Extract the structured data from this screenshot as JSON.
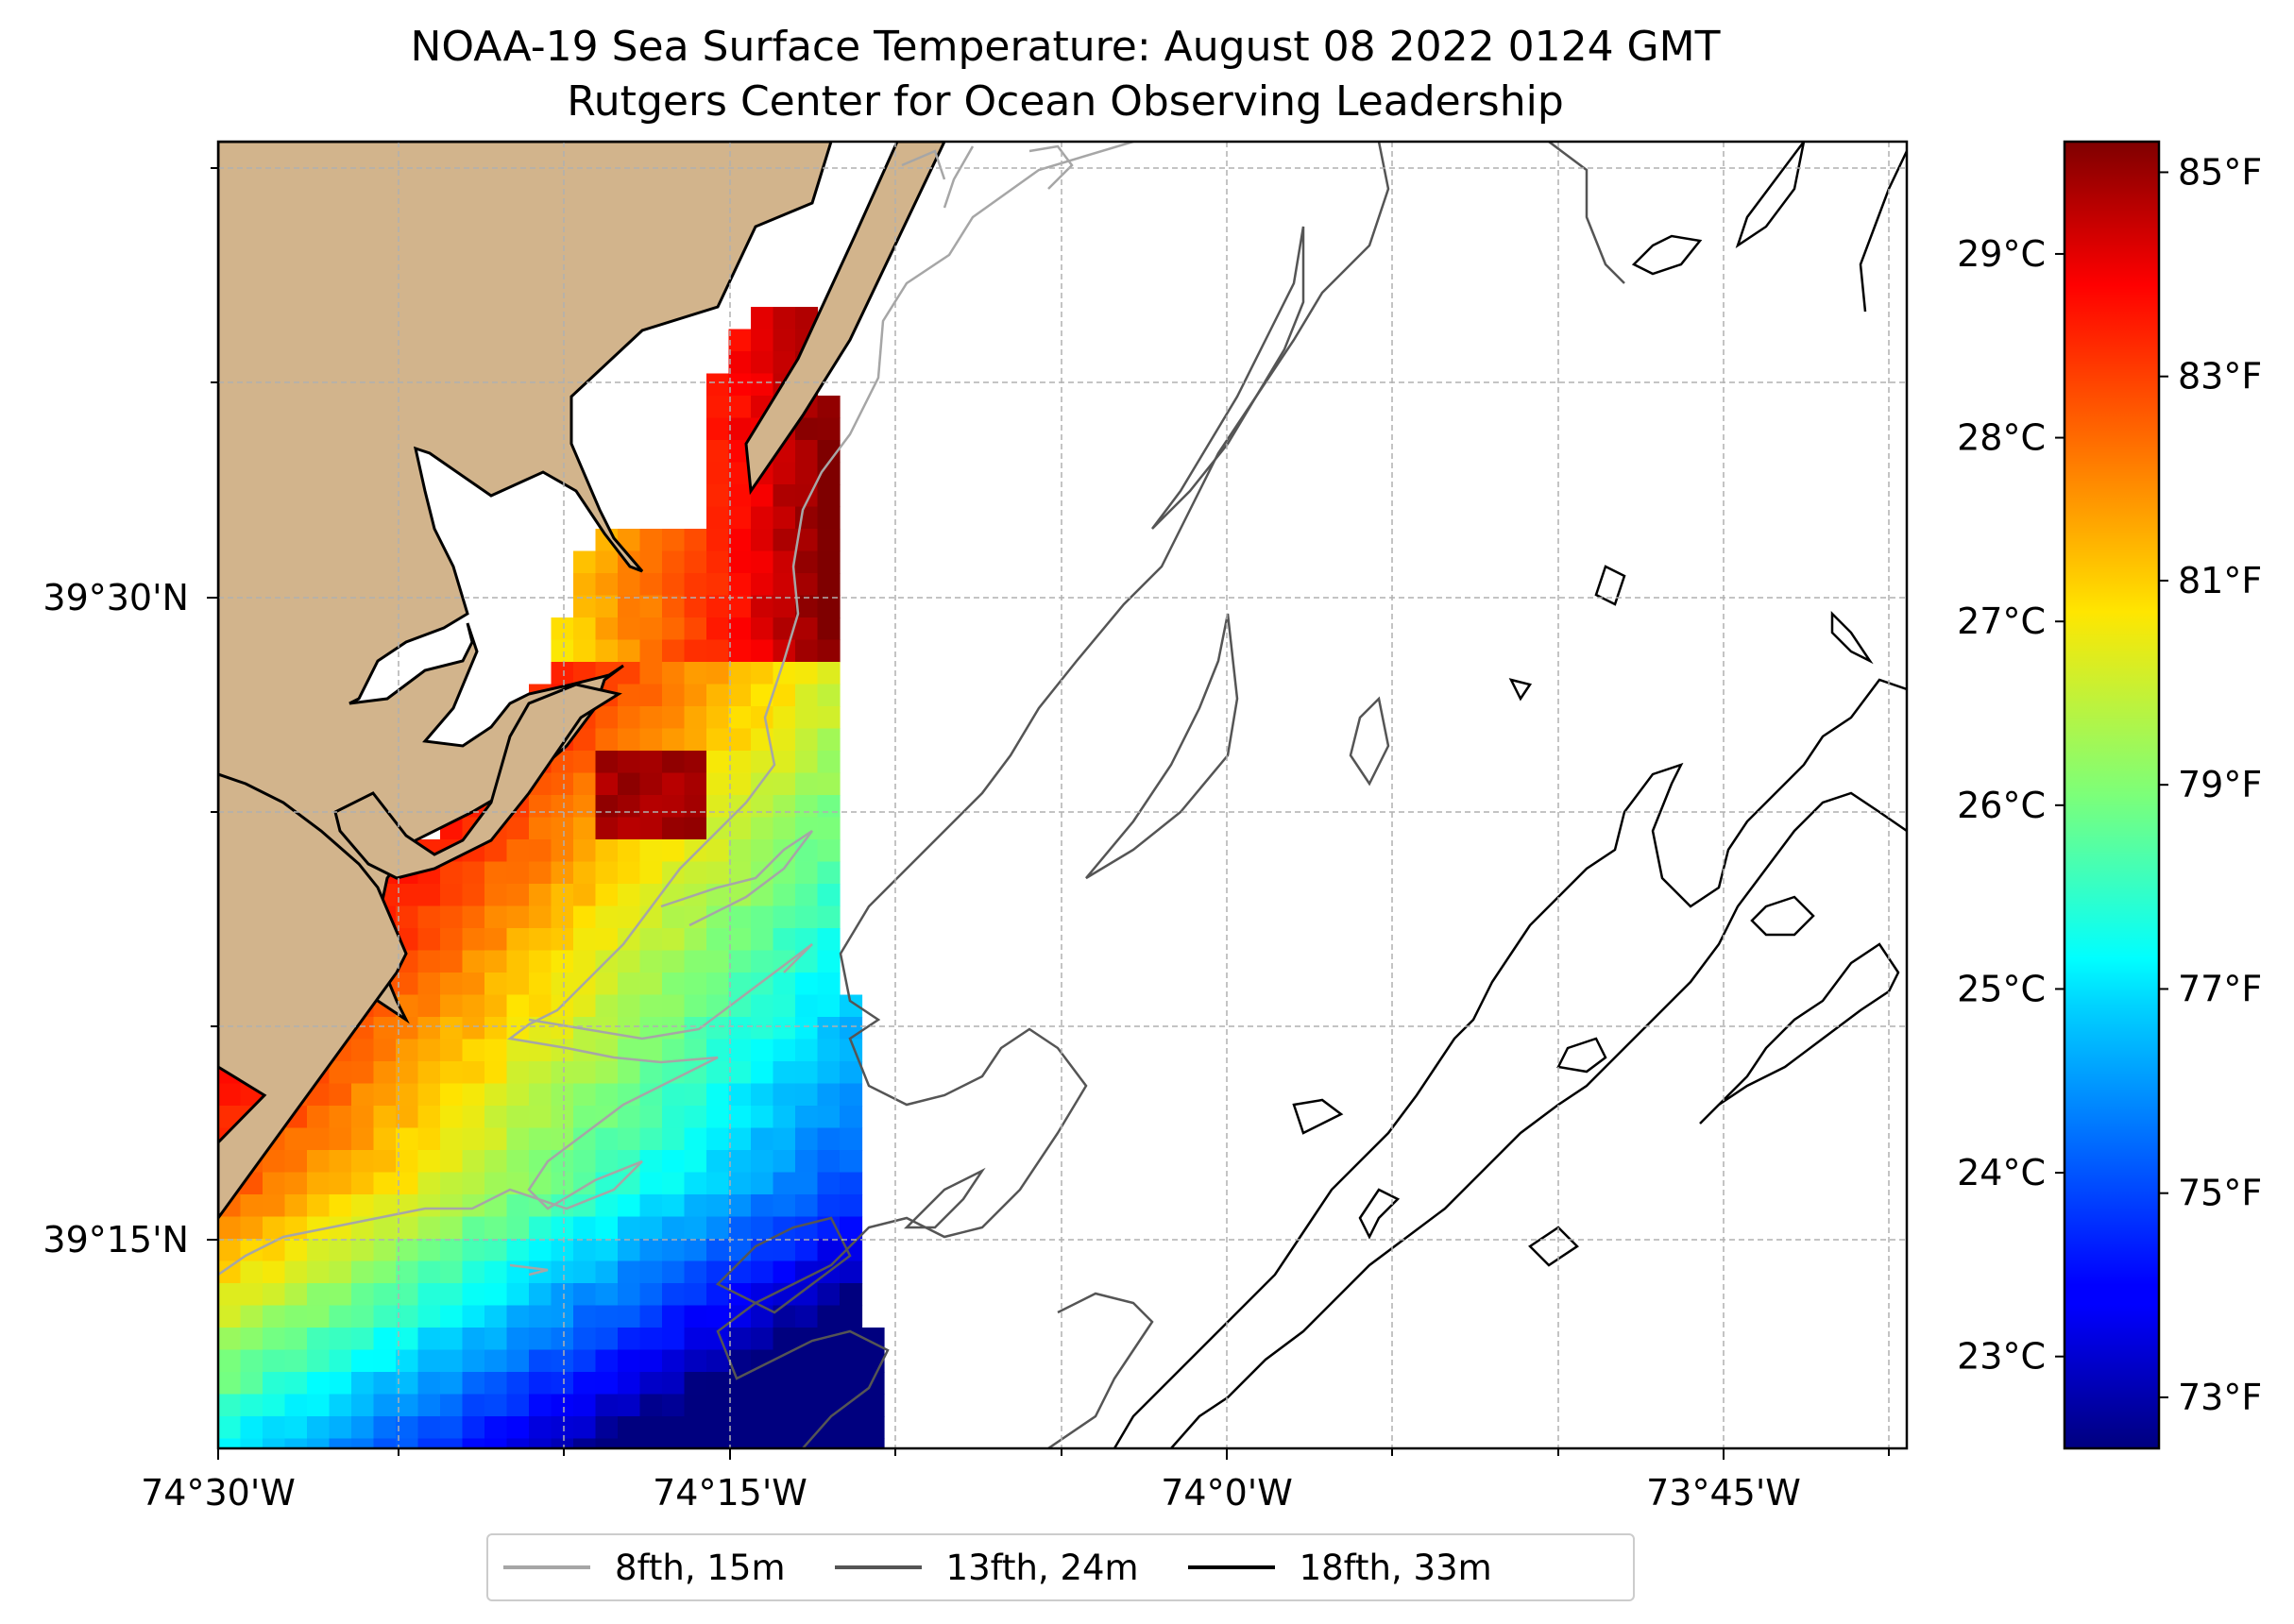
{
  "title": {
    "line1": "NOAA-19 Sea Surface Temperature: August 08 2022 0124 GMT",
    "line2": "Rutgers Center for Ocean Observing Leadership"
  },
  "axes": {
    "x_ticks": [
      "74°30'W",
      "74°15'W",
      "74°0'W",
      "73°45'W"
    ],
    "y_ticks": [
      "39°30'N",
      "39°15'N"
    ]
  },
  "colorbar": {
    "celsius_ticks": [
      "29°C",
      "28°C",
      "27°C",
      "26°C",
      "25°C",
      "24°C",
      "23°C"
    ],
    "fahrenheit_ticks": [
      "85°F",
      "83°F",
      "81°F",
      "79°F",
      "77°F",
      "75°F",
      "73°F"
    ],
    "range_f": [
      72.5,
      85.3
    ]
  },
  "legend": [
    {
      "label": "8fth, 15m",
      "color": "#a6a6a6"
    },
    {
      "label": "13fth, 24m",
      "color": "#555555"
    },
    {
      "label": "18fth, 33m",
      "color": "#000000"
    }
  ],
  "colors": {
    "land": "#d2b48c",
    "grid": "#b0b0b0"
  }
}
